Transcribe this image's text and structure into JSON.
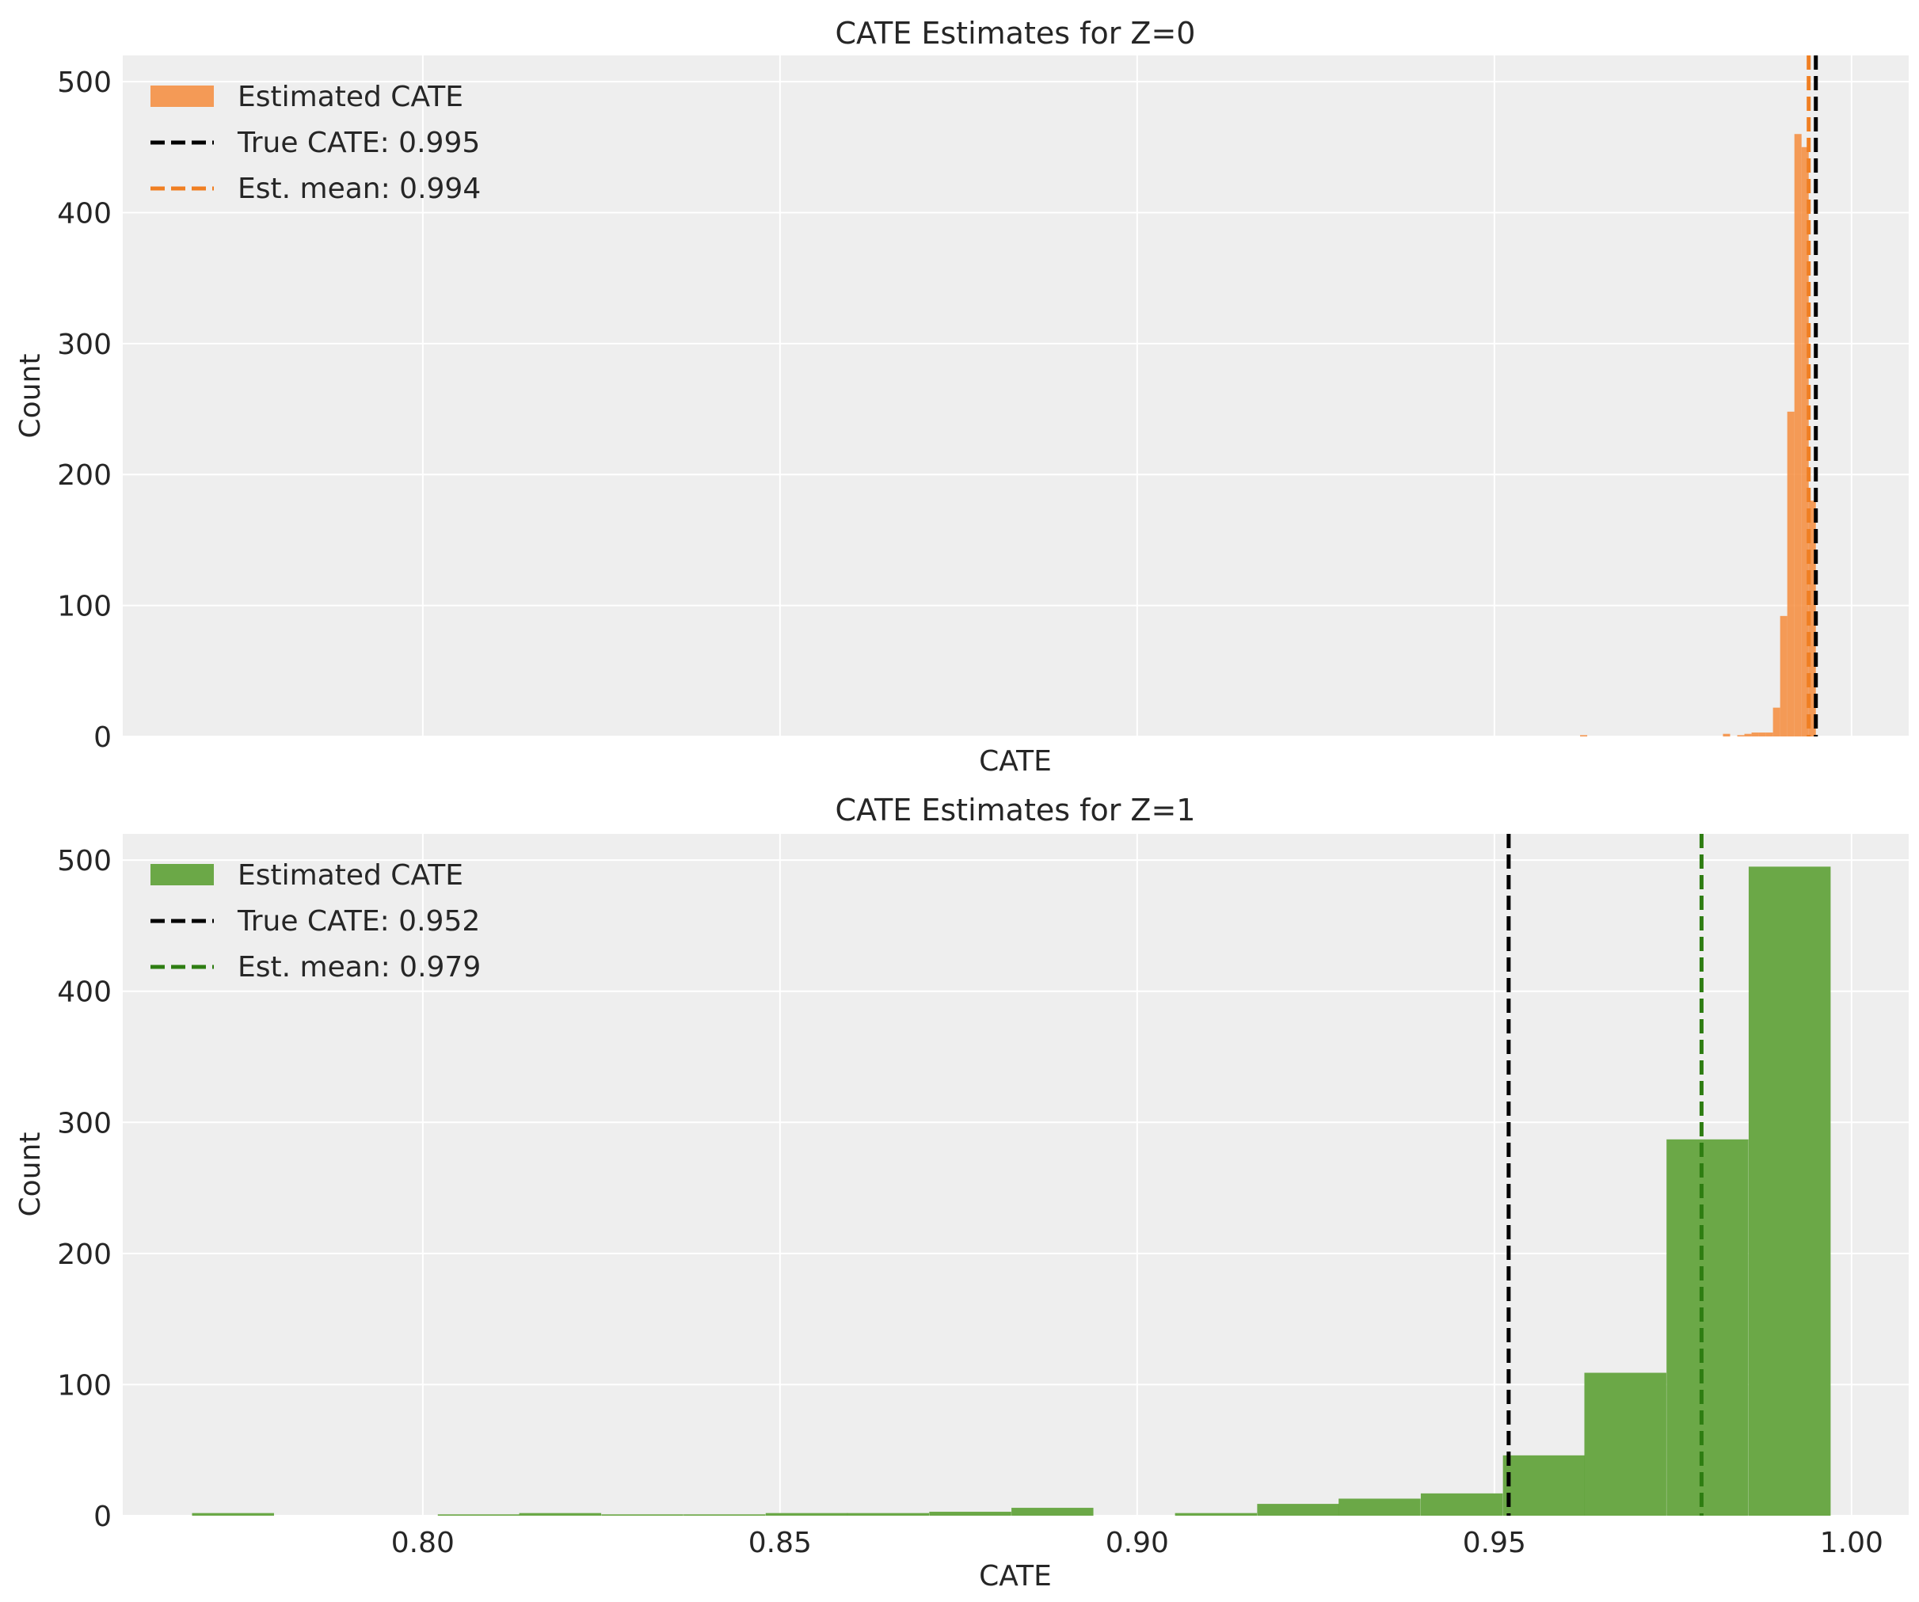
{
  "chart_data": [
    {
      "type": "bar",
      "title": "CATE Estimates for Z=0",
      "xlabel": "CATE",
      "ylabel": "Count",
      "xlim": [
        0.758,
        1.008
      ],
      "ylim": [
        0,
        520
      ],
      "xticks": [],
      "yticks": [
        0,
        100,
        200,
        300,
        400,
        500
      ],
      "grid": true,
      "legend_position": "top-left",
      "bin_width": 0.001,
      "bars": {
        "starts": [
          0.962,
          0.982,
          0.984,
          0.985,
          0.986,
          0.987,
          0.988,
          0.989,
          0.99,
          0.991,
          0.992,
          0.993,
          0.994,
          0.995,
          0.996
        ],
        "counts": [
          1,
          2,
          1,
          2,
          3,
          3,
          3,
          22,
          92,
          248,
          460,
          450,
          180,
          0,
          0
        ]
      },
      "bar_color": "#f58b3b",
      "lines": [
        {
          "label": "True CATE: 0.995",
          "x": 0.995,
          "color": "#000000"
        },
        {
          "label": "Est. mean: 0.994",
          "x": 0.994,
          "color": "#f07f22"
        }
      ],
      "legend": [
        {
          "label": "Estimated CATE",
          "kind": "patch",
          "color": "#f58b3b"
        },
        {
          "label": "True CATE: 0.995",
          "kind": "dashed",
          "color": "#000000"
        },
        {
          "label": "Est. mean: 0.994",
          "kind": "dashed",
          "color": "#f07f22"
        }
      ]
    },
    {
      "type": "bar",
      "title": "CATE Estimates for Z=1",
      "xlabel": "CATE",
      "ylabel": "Count",
      "xlim": [
        0.758,
        1.008
      ],
      "ylim": [
        0,
        520
      ],
      "xticks": [
        {
          "value": 0.8,
          "label": "0.80"
        },
        {
          "value": 0.85,
          "label": "0.85"
        },
        {
          "value": 0.9,
          "label": "0.90"
        },
        {
          "value": 0.95,
          "label": "0.95"
        },
        {
          "value": 1.0,
          "label": "1.00"
        }
      ],
      "yticks": [
        0,
        100,
        200,
        300,
        400,
        500
      ],
      "grid": true,
      "legend_position": "top-left",
      "bin_width": 0.01147,
      "bars": {
        "starts": [
          0.7677,
          0.7791,
          0.7906,
          0.8021,
          0.8135,
          0.825,
          0.8365,
          0.848,
          0.8594,
          0.8709,
          0.8824,
          0.8938,
          0.9053,
          0.9168,
          0.9282,
          0.9397,
          0.9512,
          0.9626,
          0.9741,
          0.9856
        ],
        "counts": [
          2,
          0,
          0,
          1,
          2,
          1,
          1,
          2,
          2,
          3,
          6,
          0,
          2,
          9,
          13,
          17,
          46,
          109,
          287,
          495
        ]
      },
      "bar_color": "#63a33d",
      "lines": [
        {
          "label": "True CATE: 0.952",
          "x": 0.952,
          "color": "#000000"
        },
        {
          "label": "Est. mean: 0.979",
          "x": 0.979,
          "color": "#2e7d12"
        }
      ],
      "legend": [
        {
          "label": "Estimated CATE",
          "kind": "patch",
          "color": "#63a33d"
        },
        {
          "label": "True CATE: 0.952",
          "kind": "dashed",
          "color": "#000000"
        },
        {
          "label": "Est. mean: 0.979",
          "kind": "dashed",
          "color": "#2e7d12"
        }
      ]
    }
  ]
}
